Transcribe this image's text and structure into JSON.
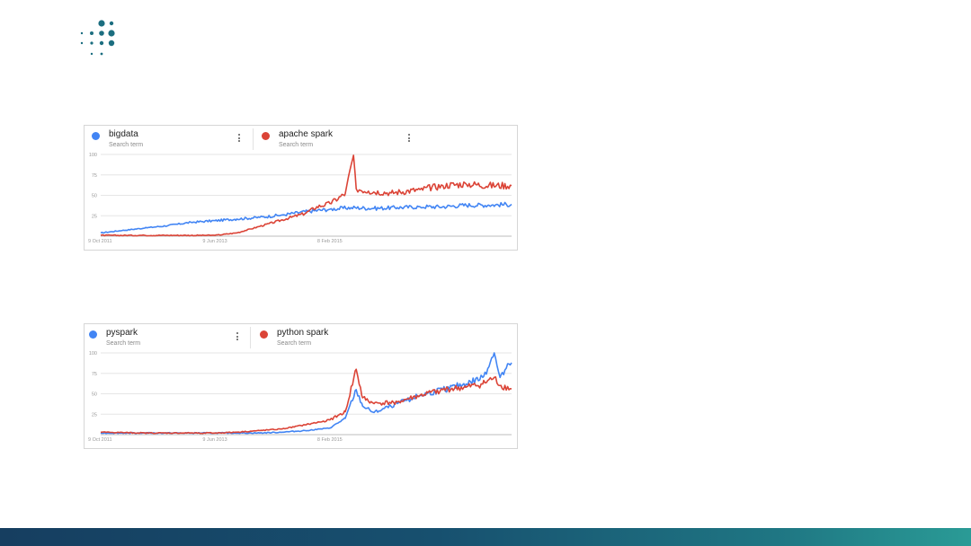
{
  "theme": {
    "brand": "#1c6e80",
    "footer_from": "#163e60",
    "footer_to": "#2a9b96",
    "series_blue": "#4285f4",
    "series_red": "#db4437"
  },
  "logo": {
    "icon": "dot-grid-logo-icon"
  },
  "panels": [
    {
      "legend": [
        {
          "term": "bigdata",
          "sub": "Search term",
          "color": "#4285f4"
        },
        {
          "term": "apache spark",
          "sub": "Search term",
          "color": "#db4437"
        }
      ]
    },
    {
      "legend": [
        {
          "term": "pyspark",
          "sub": "Search term",
          "color": "#4285f4"
        },
        {
          "term": "python spark",
          "sub": "Search term",
          "color": "#db4437"
        }
      ]
    }
  ],
  "chart_data": [
    {
      "type": "line",
      "x_range": [
        "2011-10-09",
        "2017-10-01"
      ],
      "ylim": [
        0,
        100
      ],
      "yticks": [
        "100",
        "75",
        "50",
        "25"
      ],
      "xticks": [
        "9 Oct 2011",
        "9 Jun 2013",
        "8 Feb 2015"
      ],
      "grid": true,
      "legend_position": "top",
      "series": [
        {
          "name": "bigdata",
          "color": "#4285f4",
          "x": [
            "2011-10-09",
            "2012-02-01",
            "2012-06-01",
            "2012-10-01",
            "2013-02-01",
            "2013-06-09",
            "2013-10-01",
            "2014-02-01",
            "2014-06-01",
            "2014-10-01",
            "2015-02-08",
            "2015-06-01",
            "2015-10-01",
            "2016-02-01",
            "2016-06-01",
            "2016-10-01",
            "2017-02-01",
            "2017-06-01",
            "2017-10-01"
          ],
          "values": [
            4,
            7,
            10,
            13,
            17,
            19,
            21,
            23,
            26,
            30,
            33,
            35,
            34,
            35,
            36,
            36,
            38,
            38,
            39
          ]
        },
        {
          "name": "apache spark",
          "color": "#db4437",
          "x": [
            "2011-10-09",
            "2012-06-01",
            "2013-02-01",
            "2013-06-09",
            "2013-10-01",
            "2014-02-01",
            "2014-06-01",
            "2014-10-01",
            "2014-12-01",
            "2015-02-08",
            "2015-05-01",
            "2015-06-14",
            "2015-06-28",
            "2015-09-01",
            "2016-01-01",
            "2016-06-01",
            "2016-10-01",
            "2017-02-01",
            "2017-06-01",
            "2017-10-01"
          ],
          "values": [
            1,
            1,
            1,
            1,
            4,
            12,
            20,
            28,
            36,
            40,
            52,
            99,
            58,
            55,
            53,
            57,
            62,
            64,
            62,
            62
          ]
        }
      ]
    },
    {
      "type": "line",
      "x_range": [
        "2011-10-09",
        "2017-10-01"
      ],
      "ylim": [
        0,
        100
      ],
      "yticks": [
        "100",
        "75",
        "50",
        "25"
      ],
      "xticks": [
        "9 Oct 2011",
        "9 Jun 2013",
        "8 Feb 2015"
      ],
      "grid": true,
      "legend_position": "top",
      "series": [
        {
          "name": "pyspark",
          "color": "#4285f4",
          "x": [
            "2011-10-09",
            "2012-06-01",
            "2013-02-01",
            "2013-06-09",
            "2013-10-01",
            "2014-02-01",
            "2014-06-01",
            "2014-10-01",
            "2015-02-08",
            "2015-05-01",
            "2015-06-28",
            "2015-08-01",
            "2015-10-01",
            "2016-02-01",
            "2016-06-01",
            "2016-10-01",
            "2017-02-01",
            "2017-05-01",
            "2017-07-01",
            "2017-08-01",
            "2017-10-01"
          ],
          "values": [
            2,
            2,
            2,
            2,
            2,
            2,
            3,
            5,
            8,
            20,
            55,
            35,
            27,
            38,
            48,
            55,
            62,
            70,
            100,
            70,
            88
          ]
        },
        {
          "name": "python spark",
          "color": "#db4437",
          "x": [
            "2011-10-09",
            "2012-06-01",
            "2013-02-01",
            "2013-06-09",
            "2013-10-01",
            "2014-02-01",
            "2014-06-01",
            "2014-10-01",
            "2015-02-08",
            "2015-05-01",
            "2015-06-28",
            "2015-08-01",
            "2015-10-01",
            "2016-02-01",
            "2016-06-01",
            "2016-10-01",
            "2017-02-01",
            "2017-05-01",
            "2017-07-01",
            "2017-08-01",
            "2017-10-01"
          ],
          "values": [
            3,
            2,
            2,
            2,
            3,
            5,
            7,
            12,
            18,
            28,
            80,
            45,
            38,
            40,
            48,
            55,
            58,
            62,
            70,
            60,
            56
          ]
        }
      ]
    }
  ]
}
